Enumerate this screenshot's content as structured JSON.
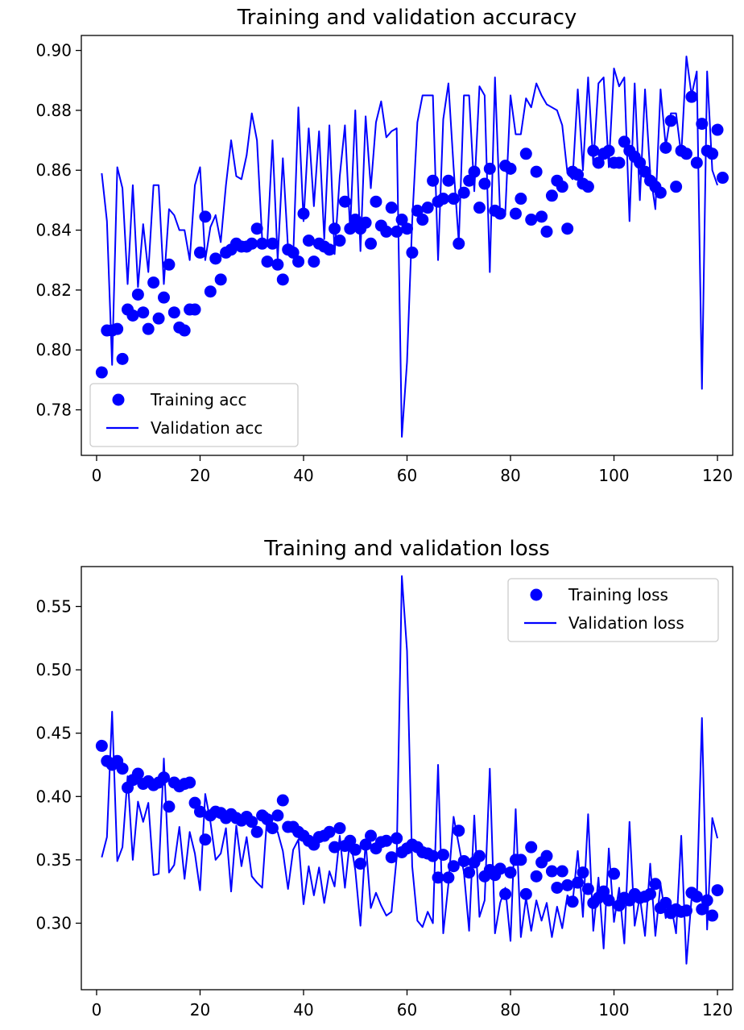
{
  "chart_data": [
    {
      "type": "line",
      "title": "Training and validation accuracy",
      "xlabel": "",
      "ylabel": "",
      "xlim": [
        -2.95,
        122.95
      ],
      "ylim": [
        0.7648,
        0.905
      ],
      "xticks": [
        0,
        20,
        40,
        60,
        80,
        100,
        120
      ],
      "yticks": [
        0.78,
        0.8,
        0.82,
        0.84,
        0.86,
        0.88,
        0.9
      ],
      "x_tick_labels": [
        "0",
        "20",
        "40",
        "60",
        "80",
        "100",
        "120"
      ],
      "y_tick_labels": [
        "0.78",
        "0.80",
        "0.82",
        "0.84",
        "0.86",
        "0.88",
        "0.90"
      ],
      "grid": false,
      "legend": {
        "position": "bottom-left",
        "entries": [
          "Training acc",
          "Validation acc"
        ]
      },
      "series": [
        {
          "name": "Training acc",
          "style": "points",
          "color": "#0000ff",
          "x_start": 1,
          "values": [
            0.7925,
            0.8065,
            0.8065,
            0.807,
            0.797,
            0.8135,
            0.8115,
            0.8185,
            0.8125,
            0.807,
            0.8225,
            0.8105,
            0.8175,
            0.8285,
            0.8125,
            0.8075,
            0.8065,
            0.8135,
            0.8135,
            0.8325,
            0.8445,
            0.8195,
            0.8305,
            0.8235,
            0.8325,
            0.8335,
            0.8355,
            0.8345,
            0.8345,
            0.8355,
            0.8405,
            0.8355,
            0.8295,
            0.8355,
            0.8285,
            0.8235,
            0.8335,
            0.8325,
            0.8295,
            0.8455,
            0.8365,
            0.8295,
            0.8355,
            0.8345,
            0.8335,
            0.8405,
            0.8365,
            0.8495,
            0.8405,
            0.8435,
            0.8405,
            0.8425,
            0.8355,
            0.8495,
            0.8415,
            0.8395,
            0.8475,
            0.8395,
            0.8435,
            0.8405,
            0.8325,
            0.8465,
            0.8435,
            0.8475,
            0.8565,
            0.8495,
            0.8505,
            0.8565,
            0.8505,
            0.8355,
            0.8525,
            0.8565,
            0.8595,
            0.8475,
            0.8555,
            0.8605,
            0.8465,
            0.8455,
            0.8615,
            0.8605,
            0.8455,
            0.8505,
            0.8655,
            0.8435,
            0.8595,
            0.8445,
            0.8395,
            0.8515,
            0.8565,
            0.8545,
            0.8405,
            0.8595,
            0.8585,
            0.8555,
            0.8545,
            0.8665,
            0.8625,
            0.8655,
            0.8665,
            0.8625,
            0.8625,
            0.8695,
            0.8665,
            0.8645,
            0.8625,
            0.8595,
            0.8565,
            0.8545,
            0.8525,
            0.8675,
            0.8765,
            0.8545,
            0.8665,
            0.8655,
            0.8845,
            0.8625,
            0.8755,
            0.8665,
            0.8655,
            0.8735,
            0.8575
          ]
        },
        {
          "name": "Validation acc",
          "style": "line",
          "color": "#0000ff",
          "x_start": 1,
          "values": [
            0.859,
            0.843,
            0.795,
            0.861,
            0.854,
            0.822,
            0.855,
            0.821,
            0.842,
            0.826,
            0.855,
            0.855,
            0.822,
            0.847,
            0.845,
            0.84,
            0.84,
            0.83,
            0.855,
            0.861,
            0.83,
            0.841,
            0.845,
            0.836,
            0.855,
            0.87,
            0.858,
            0.857,
            0.865,
            0.879,
            0.87,
            0.837,
            0.836,
            0.87,
            0.83,
            0.864,
            0.834,
            0.831,
            0.881,
            0.843,
            0.874,
            0.848,
            0.873,
            0.837,
            0.875,
            0.832,
            0.858,
            0.875,
            0.84,
            0.88,
            0.833,
            0.878,
            0.854,
            0.876,
            0.883,
            0.871,
            0.873,
            0.874,
            0.771,
            0.796,
            0.843,
            0.876,
            0.885,
            0.885,
            0.885,
            0.83,
            0.877,
            0.889,
            0.861,
            0.836,
            0.885,
            0.885,
            0.853,
            0.888,
            0.885,
            0.826,
            0.891,
            0.845,
            0.846,
            0.885,
            0.872,
            0.872,
            0.884,
            0.881,
            0.889,
            0.885,
            0.882,
            0.881,
            0.88,
            0.875,
            0.859,
            0.857,
            0.887,
            0.86,
            0.891,
            0.862,
            0.889,
            0.891,
            0.861,
            0.894,
            0.888,
            0.891,
            0.843,
            0.889,
            0.85,
            0.887,
            0.859,
            0.847,
            0.887,
            0.868,
            0.879,
            0.879,
            0.865,
            0.898,
            0.885,
            0.893,
            0.787,
            0.893,
            0.86,
            0.855
          ]
        }
      ]
    },
    {
      "type": "line",
      "title": "Training and validation loss",
      "xlabel": "",
      "ylabel": "",
      "xlim": [
        -2.95,
        122.95
      ],
      "ylim": [
        0.2475,
        0.5815
      ],
      "xticks": [
        0,
        20,
        40,
        60,
        80,
        100,
        120
      ],
      "yticks": [
        0.3,
        0.35,
        0.4,
        0.45,
        0.5,
        0.55
      ],
      "x_tick_labels": [
        "0",
        "20",
        "40",
        "60",
        "80",
        "100",
        "120"
      ],
      "y_tick_labels": [
        "0.30",
        "0.35",
        "0.40",
        "0.45",
        "0.50",
        "0.55"
      ],
      "grid": false,
      "legend": {
        "position": "top-right",
        "entries": [
          "Training loss",
          "Validation loss"
        ]
      },
      "series": [
        {
          "name": "Training loss",
          "style": "points",
          "color": "#0000ff",
          "x_start": 1,
          "values": [
            0.44,
            0.428,
            0.425,
            0.428,
            0.422,
            0.407,
            0.413,
            0.418,
            0.41,
            0.412,
            0.409,
            0.411,
            0.415,
            0.392,
            0.411,
            0.408,
            0.41,
            0.411,
            0.395,
            0.388,
            0.366,
            0.385,
            0.388,
            0.387,
            0.383,
            0.386,
            0.383,
            0.381,
            0.384,
            0.38,
            0.372,
            0.385,
            0.382,
            0.375,
            0.385,
            0.397,
            0.376,
            0.376,
            0.372,
            0.369,
            0.365,
            0.362,
            0.368,
            0.369,
            0.372,
            0.36,
            0.375,
            0.361,
            0.365,
            0.358,
            0.347,
            0.362,
            0.369,
            0.359,
            0.364,
            0.365,
            0.352,
            0.367,
            0.356,
            0.359,
            0.362,
            0.36,
            0.356,
            0.355,
            0.353,
            0.336,
            0.354,
            0.336,
            0.345,
            0.373,
            0.349,
            0.34,
            0.348,
            0.353,
            0.337,
            0.342,
            0.338,
            0.343,
            0.323,
            0.34,
            0.35,
            0.35,
            0.323,
            0.36,
            0.337,
            0.348,
            0.353,
            0.341,
            0.328,
            0.341,
            0.33,
            0.317,
            0.332,
            0.34,
            0.327,
            0.316,
            0.32,
            0.325,
            0.318,
            0.339,
            0.314,
            0.32,
            0.318,
            0.323,
            0.32,
            0.321,
            0.323,
            0.331,
            0.312,
            0.316,
            0.308,
            0.311,
            0.309,
            0.31,
            0.324,
            0.321,
            0.311,
            0.318,
            0.306,
            0.326
          ]
        },
        {
          "name": "Validation loss",
          "style": "line",
          "color": "#0000ff",
          "x_start": 1,
          "values": [
            0.352,
            0.368,
            0.467,
            0.349,
            0.36,
            0.416,
            0.35,
            0.396,
            0.38,
            0.395,
            0.338,
            0.339,
            0.43,
            0.34,
            0.346,
            0.376,
            0.335,
            0.372,
            0.355,
            0.326,
            0.402,
            0.38,
            0.35,
            0.355,
            0.375,
            0.325,
            0.377,
            0.345,
            0.368,
            0.337,
            0.332,
            0.328,
            0.387,
            0.375,
            0.372,
            0.357,
            0.327,
            0.358,
            0.366,
            0.315,
            0.345,
            0.322,
            0.344,
            0.316,
            0.341,
            0.329,
            0.369,
            0.328,
            0.367,
            0.342,
            0.298,
            0.365,
            0.312,
            0.324,
            0.314,
            0.306,
            0.309,
            0.352,
            0.574,
            0.515,
            0.345,
            0.302,
            0.297,
            0.309,
            0.3,
            0.425,
            0.292,
            0.331,
            0.384,
            0.362,
            0.34,
            0.294,
            0.385,
            0.305,
            0.318,
            0.422,
            0.292,
            0.316,
            0.328,
            0.286,
            0.39,
            0.289,
            0.32,
            0.294,
            0.318,
            0.302,
            0.316,
            0.289,
            0.313,
            0.296,
            0.322,
            0.316,
            0.357,
            0.305,
            0.386,
            0.294,
            0.336,
            0.28,
            0.359,
            0.301,
            0.328,
            0.284,
            0.38,
            0.298,
            0.321,
            0.29,
            0.347,
            0.29,
            0.331,
            0.304,
            0.315,
            0.292,
            0.369,
            0.268,
            0.32,
            0.317,
            0.462,
            0.295,
            0.383,
            0.367
          ]
        }
      ]
    }
  ]
}
